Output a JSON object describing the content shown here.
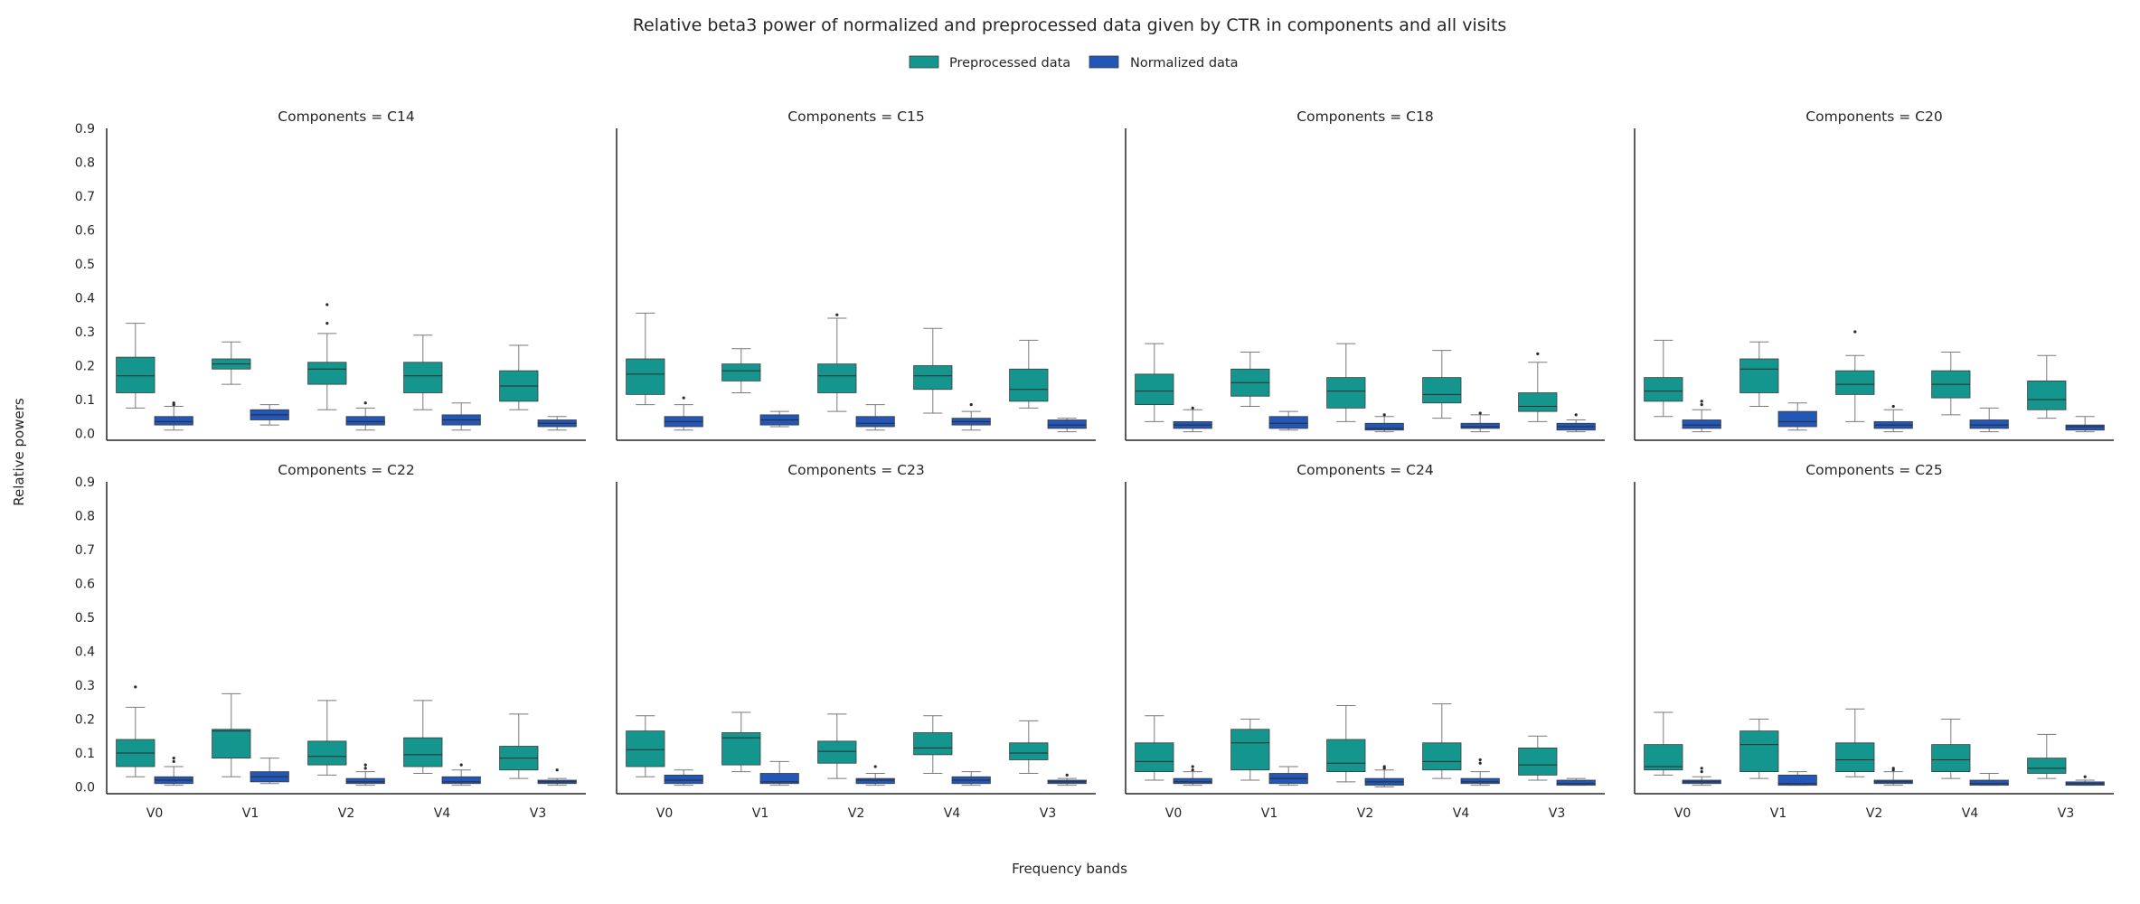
{
  "chart_data": {
    "type": "box",
    "title": "Relative beta3 power of normalized and preprocessed data given by CTR in components and all visits",
    "xlabel": "Frequency bands",
    "ylabel": "Relative powers",
    "categories": [
      "V0",
      "V1",
      "V2",
      "V4",
      "V3"
    ],
    "ylim": [
      -0.02,
      0.9
    ],
    "yticks": [
      "0.0",
      "0.1",
      "0.2",
      "0.3",
      "0.4",
      "0.5",
      "0.6",
      "0.7",
      "0.8",
      "0.9"
    ],
    "ytick_values": [
      0.0,
      0.1,
      0.2,
      0.3,
      0.4,
      0.5,
      0.6,
      0.7,
      0.8,
      0.9
    ],
    "grid": false,
    "legend_position": "top-center",
    "series": [
      {
        "name": "Preprocessed data",
        "color": "#14968e"
      },
      {
        "name": "Normalized data",
        "color": "#2257b7"
      }
    ],
    "panels": [
      {
        "title": "Components = C14",
        "boxes": {
          "Preprocessed data": [
            {
              "min": 0.075,
              "q1": 0.12,
              "median": 0.17,
              "q3": 0.225,
              "max": 0.325,
              "outliers": []
            },
            {
              "min": 0.145,
              "q1": 0.19,
              "median": 0.205,
              "q3": 0.22,
              "max": 0.27,
              "outliers": []
            },
            {
              "min": 0.07,
              "q1": 0.145,
              "median": 0.19,
              "q3": 0.21,
              "max": 0.295,
              "outliers": [
                0.325,
                0.38
              ]
            },
            {
              "min": 0.07,
              "q1": 0.12,
              "median": 0.17,
              "q3": 0.21,
              "max": 0.29,
              "outliers": []
            },
            {
              "min": 0.07,
              "q1": 0.095,
              "median": 0.14,
              "q3": 0.185,
              "max": 0.26,
              "outliers": []
            }
          ],
          "Normalized data": [
            {
              "min": 0.01,
              "q1": 0.025,
              "median": 0.035,
              "q3": 0.05,
              "max": 0.08,
              "outliers": [
                0.085,
                0.09
              ]
            },
            {
              "min": 0.025,
              "q1": 0.04,
              "median": 0.055,
              "q3": 0.07,
              "max": 0.085,
              "outliers": []
            },
            {
              "min": 0.01,
              "q1": 0.025,
              "median": 0.035,
              "q3": 0.05,
              "max": 0.075,
              "outliers": [
                0.09
              ]
            },
            {
              "min": 0.01,
              "q1": 0.025,
              "median": 0.04,
              "q3": 0.055,
              "max": 0.09,
              "outliers": []
            },
            {
              "min": 0.01,
              "q1": 0.02,
              "median": 0.03,
              "q3": 0.04,
              "max": 0.05,
              "outliers": []
            }
          ]
        }
      },
      {
        "title": "Components = C15",
        "boxes": {
          "Preprocessed data": [
            {
              "min": 0.085,
              "q1": 0.115,
              "median": 0.175,
              "q3": 0.22,
              "max": 0.355,
              "outliers": []
            },
            {
              "min": 0.12,
              "q1": 0.155,
              "median": 0.185,
              "q3": 0.205,
              "max": 0.25,
              "outliers": []
            },
            {
              "min": 0.065,
              "q1": 0.12,
              "median": 0.17,
              "q3": 0.205,
              "max": 0.34,
              "outliers": [
                0.35
              ]
            },
            {
              "min": 0.06,
              "q1": 0.13,
              "median": 0.17,
              "q3": 0.2,
              "max": 0.31,
              "outliers": []
            },
            {
              "min": 0.075,
              "q1": 0.095,
              "median": 0.13,
              "q3": 0.19,
              "max": 0.275,
              "outliers": []
            }
          ],
          "Normalized data": [
            {
              "min": 0.01,
              "q1": 0.02,
              "median": 0.035,
              "q3": 0.05,
              "max": 0.085,
              "outliers": [
                0.105
              ]
            },
            {
              "min": 0.02,
              "q1": 0.025,
              "median": 0.04,
              "q3": 0.055,
              "max": 0.065,
              "outliers": []
            },
            {
              "min": 0.01,
              "q1": 0.02,
              "median": 0.03,
              "q3": 0.05,
              "max": 0.085,
              "outliers": []
            },
            {
              "min": 0.01,
              "q1": 0.025,
              "median": 0.035,
              "q3": 0.045,
              "max": 0.065,
              "outliers": [
                0.085
              ]
            },
            {
              "min": 0.005,
              "q1": 0.015,
              "median": 0.025,
              "q3": 0.04,
              "max": 0.045,
              "outliers": []
            }
          ]
        }
      },
      {
        "title": "Components = C18",
        "boxes": {
          "Preprocessed data": [
            {
              "min": 0.035,
              "q1": 0.085,
              "median": 0.125,
              "q3": 0.175,
              "max": 0.265,
              "outliers": []
            },
            {
              "min": 0.08,
              "q1": 0.11,
              "median": 0.15,
              "q3": 0.19,
              "max": 0.24,
              "outliers": []
            },
            {
              "min": 0.035,
              "q1": 0.075,
              "median": 0.125,
              "q3": 0.165,
              "max": 0.265,
              "outliers": []
            },
            {
              "min": 0.045,
              "q1": 0.09,
              "median": 0.115,
              "q3": 0.165,
              "max": 0.245,
              "outliers": []
            },
            {
              "min": 0.035,
              "q1": 0.065,
              "median": 0.08,
              "q3": 0.12,
              "max": 0.21,
              "outliers": [
                0.235
              ]
            }
          ],
          "Normalized data": [
            {
              "min": 0.005,
              "q1": 0.015,
              "median": 0.025,
              "q3": 0.035,
              "max": 0.07,
              "outliers": [
                0.075
              ]
            },
            {
              "min": 0.01,
              "q1": 0.015,
              "median": 0.03,
              "q3": 0.05,
              "max": 0.065,
              "outliers": []
            },
            {
              "min": 0.005,
              "q1": 0.01,
              "median": 0.015,
              "q3": 0.03,
              "max": 0.05,
              "outliers": [
                0.055
              ]
            },
            {
              "min": 0.005,
              "q1": 0.015,
              "median": 0.02,
              "q3": 0.03,
              "max": 0.055,
              "outliers": [
                0.06
              ]
            },
            {
              "min": 0.005,
              "q1": 0.01,
              "median": 0.02,
              "q3": 0.03,
              "max": 0.04,
              "outliers": [
                0.055
              ]
            }
          ]
        }
      },
      {
        "title": "Components = C20",
        "boxes": {
          "Preprocessed data": [
            {
              "min": 0.05,
              "q1": 0.095,
              "median": 0.125,
              "q3": 0.165,
              "max": 0.275,
              "outliers": []
            },
            {
              "min": 0.08,
              "q1": 0.12,
              "median": 0.19,
              "q3": 0.22,
              "max": 0.27,
              "outliers": []
            },
            {
              "min": 0.035,
              "q1": 0.115,
              "median": 0.145,
              "q3": 0.185,
              "max": 0.23,
              "outliers": [
                0.3
              ]
            },
            {
              "min": 0.055,
              "q1": 0.105,
              "median": 0.145,
              "q3": 0.185,
              "max": 0.24,
              "outliers": []
            },
            {
              "min": 0.045,
              "q1": 0.07,
              "median": 0.1,
              "q3": 0.155,
              "max": 0.23,
              "outliers": []
            }
          ],
          "Normalized data": [
            {
              "min": 0.005,
              "q1": 0.015,
              "median": 0.025,
              "q3": 0.04,
              "max": 0.07,
              "outliers": [
                0.085,
                0.095
              ]
            },
            {
              "min": 0.01,
              "q1": 0.02,
              "median": 0.035,
              "q3": 0.065,
              "max": 0.09,
              "outliers": []
            },
            {
              "min": 0.005,
              "q1": 0.015,
              "median": 0.025,
              "q3": 0.035,
              "max": 0.07,
              "outliers": [
                0.08
              ]
            },
            {
              "min": 0.005,
              "q1": 0.015,
              "median": 0.025,
              "q3": 0.04,
              "max": 0.075,
              "outliers": []
            },
            {
              "min": 0.005,
              "q1": 0.01,
              "median": 0.02,
              "q3": 0.025,
              "max": 0.05,
              "outliers": []
            }
          ]
        }
      },
      {
        "title": "Components = C22",
        "boxes": {
          "Preprocessed data": [
            {
              "min": 0.03,
              "q1": 0.06,
              "median": 0.1,
              "q3": 0.14,
              "max": 0.235,
              "outliers": [
                0.295
              ]
            },
            {
              "min": 0.03,
              "q1": 0.085,
              "median": 0.165,
              "q3": 0.17,
              "max": 0.275,
              "outliers": []
            },
            {
              "min": 0.035,
              "q1": 0.065,
              "median": 0.09,
              "q3": 0.135,
              "max": 0.255,
              "outliers": []
            },
            {
              "min": 0.04,
              "q1": 0.06,
              "median": 0.095,
              "q3": 0.145,
              "max": 0.255,
              "outliers": []
            },
            {
              "min": 0.025,
              "q1": 0.05,
              "median": 0.085,
              "q3": 0.12,
              "max": 0.215,
              "outliers": []
            }
          ],
          "Normalized data": [
            {
              "min": 0.005,
              "q1": 0.01,
              "median": 0.02,
              "q3": 0.03,
              "max": 0.06,
              "outliers": [
                0.075,
                0.085
              ]
            },
            {
              "min": 0.01,
              "q1": 0.015,
              "median": 0.03,
              "q3": 0.045,
              "max": 0.085,
              "outliers": []
            },
            {
              "min": 0.005,
              "q1": 0.01,
              "median": 0.015,
              "q3": 0.025,
              "max": 0.045,
              "outliers": [
                0.055,
                0.065
              ]
            },
            {
              "min": 0.005,
              "q1": 0.01,
              "median": 0.015,
              "q3": 0.03,
              "max": 0.05,
              "outliers": [
                0.065
              ]
            },
            {
              "min": 0.005,
              "q1": 0.01,
              "median": 0.015,
              "q3": 0.02,
              "max": 0.025,
              "outliers": [
                0.05
              ]
            }
          ]
        }
      },
      {
        "title": "Components = C23",
        "boxes": {
          "Preprocessed data": [
            {
              "min": 0.03,
              "q1": 0.06,
              "median": 0.11,
              "q3": 0.165,
              "max": 0.21,
              "outliers": []
            },
            {
              "min": 0.045,
              "q1": 0.065,
              "median": 0.145,
              "q3": 0.16,
              "max": 0.22,
              "outliers": []
            },
            {
              "min": 0.025,
              "q1": 0.07,
              "median": 0.105,
              "q3": 0.135,
              "max": 0.215,
              "outliers": []
            },
            {
              "min": 0.04,
              "q1": 0.095,
              "median": 0.115,
              "q3": 0.16,
              "max": 0.21,
              "outliers": []
            },
            {
              "min": 0.04,
              "q1": 0.08,
              "median": 0.1,
              "q3": 0.13,
              "max": 0.195,
              "outliers": []
            }
          ],
          "Normalized data": [
            {
              "min": 0.005,
              "q1": 0.01,
              "median": 0.02,
              "q3": 0.035,
              "max": 0.05,
              "outliers": []
            },
            {
              "min": 0.005,
              "q1": 0.01,
              "median": 0.015,
              "q3": 0.04,
              "max": 0.075,
              "outliers": []
            },
            {
              "min": 0.005,
              "q1": 0.01,
              "median": 0.02,
              "q3": 0.025,
              "max": 0.04,
              "outliers": [
                0.06
              ]
            },
            {
              "min": 0.005,
              "q1": 0.01,
              "median": 0.02,
              "q3": 0.03,
              "max": 0.045,
              "outliers": []
            },
            {
              "min": 0.005,
              "q1": 0.01,
              "median": 0.015,
              "q3": 0.02,
              "max": 0.025,
              "outliers": [
                0.035
              ]
            }
          ]
        }
      },
      {
        "title": "Components = C24",
        "boxes": {
          "Preprocessed data": [
            {
              "min": 0.02,
              "q1": 0.045,
              "median": 0.075,
              "q3": 0.13,
              "max": 0.21,
              "outliers": []
            },
            {
              "min": 0.02,
              "q1": 0.05,
              "median": 0.13,
              "q3": 0.17,
              "max": 0.2,
              "outliers": []
            },
            {
              "min": 0.015,
              "q1": 0.045,
              "median": 0.07,
              "q3": 0.14,
              "max": 0.24,
              "outliers": []
            },
            {
              "min": 0.025,
              "q1": 0.05,
              "median": 0.075,
              "q3": 0.13,
              "max": 0.245,
              "outliers": []
            },
            {
              "min": 0.02,
              "q1": 0.035,
              "median": 0.065,
              "q3": 0.115,
              "max": 0.15,
              "outliers": []
            }
          ],
          "Normalized data": [
            {
              "min": 0.005,
              "q1": 0.01,
              "median": 0.015,
              "q3": 0.025,
              "max": 0.045,
              "outliers": [
                0.05,
                0.06
              ]
            },
            {
              "min": 0.005,
              "q1": 0.01,
              "median": 0.025,
              "q3": 0.04,
              "max": 0.06,
              "outliers": []
            },
            {
              "min": 0.0,
              "q1": 0.005,
              "median": 0.015,
              "q3": 0.025,
              "max": 0.05,
              "outliers": [
                0.055,
                0.06
              ]
            },
            {
              "min": 0.005,
              "q1": 0.01,
              "median": 0.015,
              "q3": 0.025,
              "max": 0.045,
              "outliers": [
                0.07,
                0.08
              ]
            },
            {
              "min": 0.005,
              "q1": 0.005,
              "median": 0.01,
              "q3": 0.02,
              "max": 0.025,
              "outliers": []
            }
          ]
        }
      },
      {
        "title": "Components = C25",
        "boxes": {
          "Preprocessed data": [
            {
              "min": 0.035,
              "q1": 0.05,
              "median": 0.06,
              "q3": 0.125,
              "max": 0.22,
              "outliers": []
            },
            {
              "min": 0.025,
              "q1": 0.045,
              "median": 0.125,
              "q3": 0.165,
              "max": 0.2,
              "outliers": []
            },
            {
              "min": 0.03,
              "q1": 0.045,
              "median": 0.08,
              "q3": 0.13,
              "max": 0.23,
              "outliers": []
            },
            {
              "min": 0.025,
              "q1": 0.045,
              "median": 0.08,
              "q3": 0.125,
              "max": 0.2,
              "outliers": []
            },
            {
              "min": 0.025,
              "q1": 0.04,
              "median": 0.055,
              "q3": 0.085,
              "max": 0.155,
              "outliers": []
            }
          ],
          "Normalized data": [
            {
              "min": 0.005,
              "q1": 0.01,
              "median": 0.015,
              "q3": 0.02,
              "max": 0.03,
              "outliers": [
                0.045,
                0.055
              ]
            },
            {
              "min": 0.005,
              "q1": 0.005,
              "median": 0.01,
              "q3": 0.035,
              "max": 0.045,
              "outliers": []
            },
            {
              "min": 0.005,
              "q1": 0.01,
              "median": 0.015,
              "q3": 0.02,
              "max": 0.045,
              "outliers": [
                0.05,
                0.055
              ]
            },
            {
              "min": 0.005,
              "q1": 0.005,
              "median": 0.01,
              "q3": 0.02,
              "max": 0.04,
              "outliers": []
            },
            {
              "min": 0.005,
              "q1": 0.005,
              "median": 0.01,
              "q3": 0.015,
              "max": 0.02,
              "outliers": [
                0.03
              ]
            }
          ]
        }
      }
    ]
  }
}
